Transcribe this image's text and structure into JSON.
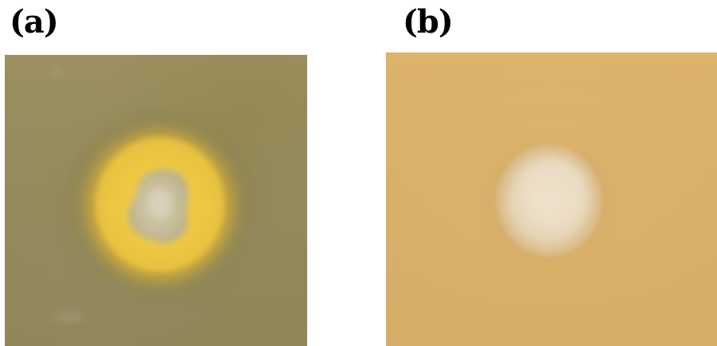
{
  "panels": [
    {
      "label": "(a)",
      "description": "yellow-halo-colony"
    },
    {
      "label": "(b)",
      "description": "colony-no-halo"
    }
  ],
  "colors": {
    "background_a": "#968c5e",
    "halo_a": "#e9c23a",
    "colony_a": "#c9c0a2",
    "background_b": "#d9b06a",
    "colony_b": "#e8d8c0"
  }
}
